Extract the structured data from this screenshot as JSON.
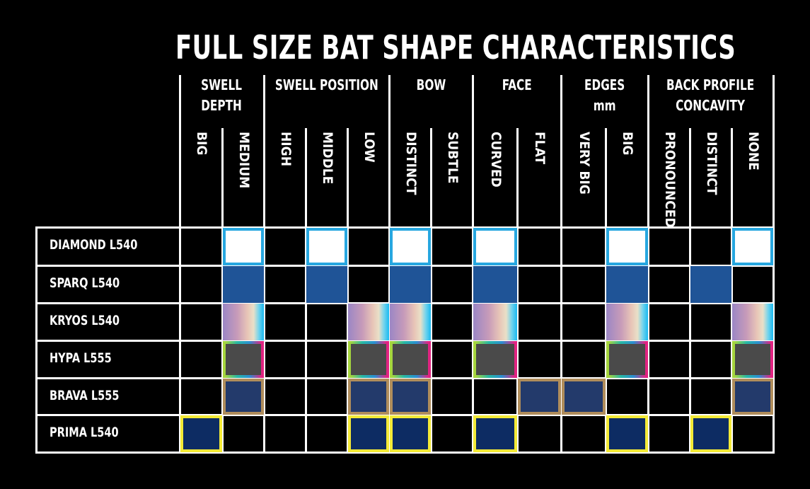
{
  "title": "FULL SIZE BAT SHAPE CHARACTERISTICS",
  "groups": [
    {
      "label": "SWELL\nDEPTH"
    },
    {
      "label": "SWELL POSITION"
    },
    {
      "label": "BOW"
    },
    {
      "label": "FACE"
    },
    {
      "label": "EDGES\nmm"
    },
    {
      "label": "BACK PROFILE\nCONCAVITY"
    }
  ],
  "columns": [
    "BIG",
    "MEDIUM",
    "HIGH",
    "MIDDLE",
    "LOW",
    "DISTINCT",
    "SUBTLE",
    "CURVED",
    "FLAT",
    "VERY BIG",
    "BIG",
    "PRONOUNCED",
    "DISTINCT",
    "NONE"
  ],
  "rows": [
    {
      "name": "DIAMOND L540",
      "marked": [
        1,
        3,
        5,
        7,
        10,
        13
      ]
    },
    {
      "name": "SPARQ L540",
      "marked": [
        1,
        3,
        5,
        7,
        10,
        12
      ]
    },
    {
      "name": "KRYOS L540",
      "marked": [
        1,
        4,
        5,
        7,
        10,
        13
      ]
    },
    {
      "name": "HYPA L555",
      "marked": [
        1,
        4,
        5,
        7,
        10,
        13
      ]
    },
    {
      "name": "BRAVA L555",
      "marked": [
        1,
        4,
        5,
        8,
        9,
        13
      ]
    },
    {
      "name": "PRIMA L540",
      "marked": [
        0,
        4,
        5,
        7,
        10,
        12
      ]
    }
  ],
  "colors": {
    "diamond": "#ffffff",
    "sparq": "#1f5497",
    "kryos": "gradient",
    "hypa": "#4a4a4a",
    "brava": "#233a6b",
    "prima": "#0d2c63"
  }
}
